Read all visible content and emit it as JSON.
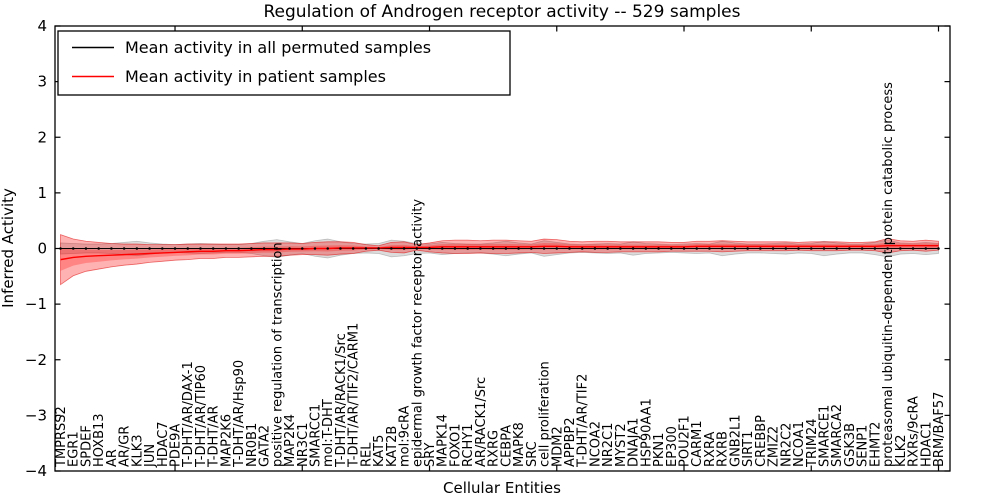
{
  "chart_data": {
    "type": "line",
    "title": "Regulation of Androgen receptor activity -- 529 samples",
    "xlabel": "Cellular Entities",
    "ylabel": "Inferred Activity",
    "ylim": [
      -4,
      4
    ],
    "yticks": [
      4,
      3,
      2,
      1,
      0,
      -1,
      -2,
      -3,
      -4
    ],
    "x_major_tick_positions": [
      10,
      20,
      30,
      40,
      50,
      60,
      70
    ],
    "grid": false,
    "legend_position": "upper left",
    "categories": [
      "TMPRSS2",
      "EGR1",
      "SPDEF",
      "HOXB13",
      "AR",
      "AR/GR",
      "KLK3",
      "JUN",
      "HDAC7",
      "PDE9A",
      "T-DHT/AR/DAX-1",
      "T-DHT/AR/TIP60",
      "T-DHT/AR",
      "MAP2K6",
      "T-DHT/AR/Hsp90",
      "NR0B1",
      "GATA2",
      "positive regulation of transcription",
      "MAP2K4",
      "NR3C1",
      "SMARCC1",
      "mol:T-DHT",
      "T-DHT/AR/RACK1/Src",
      "T-DHT/AR/TIF2/CARM1",
      "REL",
      "KAT5",
      "KAT2B",
      "mol:9cRA",
      "epidermal growth factor receptor activity",
      "SRY",
      "MAPK14",
      "FOXO1",
      "RCHY1",
      "AR/RACK1/Src",
      "RXRG",
      "CEBPA",
      "MAPK8",
      "SRC",
      "cell proliferation",
      "MDM2",
      "APPBP2",
      "T-DHT/AR/TIF2",
      "NCOA2",
      "NR2C1",
      "MYST2",
      "DNAJA1",
      "HSP90AA1",
      "PKN1",
      "EP300",
      "POU2F1",
      "CARM1",
      "RXRA",
      "RXRB",
      "GNB2L1",
      "SIRT1",
      "CREBBP",
      "ZMIZ2",
      "NR2C2",
      "NCOA1",
      "TRIM24",
      "SMARCE1",
      "SMARCA2",
      "GSK3B",
      "SENP1",
      "EHMT2",
      "proteasomal ubiquitin-dependent protein catabolic process",
      "KLK2",
      "RXRs/9cRA",
      "HDAC1",
      "BRM/BAF57"
    ],
    "series": [
      {
        "name": "Mean activity in all permuted samples",
        "color": "#000000",
        "band_color": "#808080",
        "mean": [
          0,
          0,
          0,
          0,
          0,
          0,
          0,
          0,
          0,
          0,
          0,
          0,
          0,
          0,
          0,
          0,
          0,
          0,
          0,
          0,
          0,
          0,
          0,
          0,
          0,
          0,
          0,
          0,
          0,
          0,
          0,
          0,
          0,
          0,
          0,
          0,
          0,
          0,
          0,
          0,
          0,
          0,
          0,
          0,
          0,
          0,
          0,
          0,
          0,
          0,
          0,
          0,
          0,
          0,
          0,
          0,
          0,
          0,
          0,
          0,
          0,
          0,
          0,
          0,
          0,
          0,
          0,
          0,
          0,
          0
        ],
        "band_halfwidth": [
          0.1,
          0.09,
          0.08,
          0.08,
          0.09,
          0.11,
          0.13,
          0.1,
          0.08,
          0.07,
          0.08,
          0.09,
          0.08,
          0.07,
          0.07,
          0.09,
          0.13,
          0.16,
          0.12,
          0.09,
          0.14,
          0.17,
          0.12,
          0.09,
          0.08,
          0.09,
          0.15,
          0.13,
          0.09,
          0.08,
          0.11,
          0.09,
          0.08,
          0.08,
          0.1,
          0.13,
          0.1,
          0.08,
          0.14,
          0.11,
          0.08,
          0.07,
          0.08,
          0.09,
          0.08,
          0.12,
          0.09,
          0.08,
          0.07,
          0.08,
          0.09,
          0.08,
          0.13,
          0.1,
          0.08,
          0.08,
          0.09,
          0.1,
          0.08,
          0.09,
          0.13,
          0.1,
          0.08,
          0.08,
          0.11,
          0.15,
          0.1,
          0.09,
          0.11,
          0.09
        ]
      },
      {
        "name": "Mean activity in patient samples",
        "color": "#ff0000",
        "band_color": "#ff0000",
        "mean": [
          -0.2,
          -0.16,
          -0.14,
          -0.13,
          -0.12,
          -0.11,
          -0.1,
          -0.09,
          -0.08,
          -0.07,
          -0.06,
          -0.05,
          -0.05,
          -0.04,
          -0.04,
          -0.03,
          -0.02,
          -0.02,
          -0.01,
          -0.01,
          0.0,
          0.0,
          0.01,
          0.01,
          0.01,
          0.01,
          0.02,
          0.02,
          0.02,
          0.02,
          0.03,
          0.03,
          0.03,
          0.03,
          0.03,
          0.03,
          0.03,
          0.03,
          0.04,
          0.04,
          0.03,
          0.03,
          0.03,
          0.03,
          0.03,
          0.03,
          0.03,
          0.03,
          0.03,
          0.03,
          0.04,
          0.04,
          0.04,
          0.04,
          0.04,
          0.04,
          0.04,
          0.04,
          0.04,
          0.04,
          0.04,
          0.04,
          0.04,
          0.04,
          0.04,
          0.05,
          0.05,
          0.05,
          0.05,
          0.05
        ],
        "band_halfwidth": [
          0.45,
          0.33,
          0.27,
          0.24,
          0.21,
          0.19,
          0.18,
          0.16,
          0.15,
          0.14,
          0.14,
          0.13,
          0.13,
          0.12,
          0.12,
          0.12,
          0.12,
          0.12,
          0.11,
          0.1,
          0.11,
          0.12,
          0.11,
          0.1,
          0.06,
          0.04,
          0.09,
          0.1,
          0.05,
          0.08,
          0.11,
          0.12,
          0.12,
          0.11,
          0.12,
          0.12,
          0.11,
          0.1,
          0.13,
          0.12,
          0.1,
          0.09,
          0.1,
          0.1,
          0.09,
          0.09,
          0.09,
          0.09,
          0.08,
          0.08,
          0.09,
          0.09,
          0.1,
          0.09,
          0.08,
          0.08,
          0.08,
          0.08,
          0.07,
          0.08,
          0.08,
          0.08,
          0.07,
          0.07,
          0.08,
          0.13,
          0.09,
          0.08,
          0.1,
          0.08
        ]
      }
    ]
  }
}
